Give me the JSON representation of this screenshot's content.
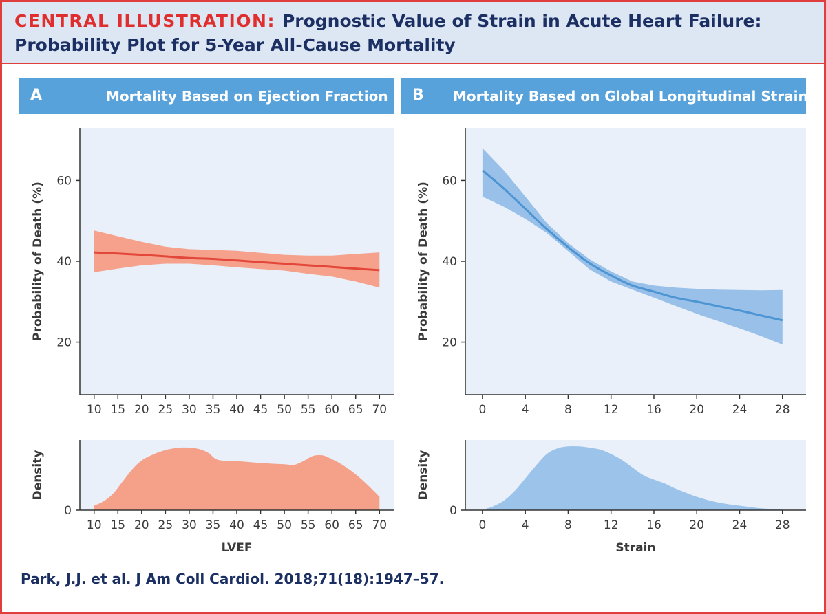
{
  "header": {
    "label": "CENTRAL ILLUSTRATION:",
    "title_line1": "Prognostic Value of Strain in Acute Heart Failure:",
    "title_line2": "Probability Plot for 5-Year All-Cause Mortality"
  },
  "panels": {
    "a": {
      "letter": "A",
      "title": "Mortality Based on Ejection Fraction"
    },
    "b": {
      "letter": "B",
      "title": "Mortality Based on Global Longitudinal Strain"
    }
  },
  "citation": "Park, J.J. et al. J Am Coll Cardiol. 2018;71(18):1947–57.",
  "colors": {
    "red_line": "#e2473a",
    "red_band": "#f6a18c",
    "red_density": "#f5a088",
    "blue_line": "#4d94d3",
    "blue_band": "#98c0e8",
    "blue_density": "#9cc3ea",
    "plot_bg": "#e9f0f9",
    "axis": "#333333"
  },
  "chart_data": [
    {
      "id": "a-prob",
      "type": "line",
      "title": "Mortality Based on Ejection Fraction",
      "xlabel": "",
      "ylabel": "Probability of Death (%)",
      "xlim": [
        7,
        73
      ],
      "ylim": [
        7,
        73
      ],
      "xticks": [
        10,
        15,
        20,
        25,
        30,
        35,
        40,
        45,
        50,
        55,
        60,
        65,
        70
      ],
      "yticks": [
        20,
        40,
        60
      ],
      "line_color": "red_line",
      "band_color": "red_band",
      "series": [
        {
          "name": "Probability of death",
          "x": [
            10,
            15,
            20,
            25,
            30,
            35,
            40,
            45,
            50,
            55,
            60,
            65,
            70
          ],
          "y": [
            42.2,
            41.9,
            41.6,
            41.2,
            40.8,
            40.6,
            40.2,
            39.8,
            39.4,
            39.0,
            38.6,
            38.2,
            37.8
          ],
          "lower": [
            37.3,
            38.2,
            39.0,
            39.4,
            39.4,
            39.0,
            38.5,
            38.1,
            37.7,
            36.9,
            36.2,
            35.0,
            33.5
          ],
          "upper": [
            47.6,
            46.2,
            44.8,
            43.6,
            43.0,
            42.8,
            42.6,
            42.1,
            41.6,
            41.4,
            41.4,
            41.8,
            42.2
          ]
        }
      ]
    },
    {
      "id": "a-density",
      "type": "area",
      "xlabel": "LVEF",
      "ylabel": "Density",
      "xlim": [
        7,
        73
      ],
      "ylim": [
        0,
        1.1
      ],
      "xticks": [
        10,
        15,
        20,
        25,
        30,
        35,
        40,
        45,
        50,
        55,
        60,
        65,
        70
      ],
      "yticks": [
        0
      ],
      "fill_color": "red_density",
      "series": [
        {
          "name": "Density",
          "x": [
            10,
            12,
            14,
            16,
            18,
            20,
            22,
            24,
            26,
            28,
            30,
            32,
            34,
            36,
            40,
            45,
            50,
            52,
            54,
            56,
            58,
            60,
            62,
            64,
            66,
            68,
            70
          ],
          "y": [
            0.07,
            0.14,
            0.26,
            0.45,
            0.64,
            0.78,
            0.86,
            0.92,
            0.96,
            0.98,
            0.98,
            0.96,
            0.9,
            0.79,
            0.77,
            0.74,
            0.72,
            0.71,
            0.77,
            0.85,
            0.86,
            0.8,
            0.72,
            0.62,
            0.5,
            0.36,
            0.21
          ]
        }
      ]
    },
    {
      "id": "b-prob",
      "type": "line",
      "title": "Mortality Based on Global Longitudinal Strain",
      "xlabel": "",
      "ylabel": "Probability of Death (%)",
      "xlim": [
        -1.6,
        30.2
      ],
      "ylim": [
        7,
        73
      ],
      "xticks": [
        0,
        4,
        8,
        12,
        16,
        20,
        24,
        28
      ],
      "yticks": [
        20,
        40,
        60
      ],
      "line_color": "blue_line",
      "band_color": "blue_band",
      "series": [
        {
          "name": "Probability of death",
          "x": [
            0,
            2,
            4,
            6,
            8,
            10,
            12,
            14,
            16,
            18,
            20,
            22,
            24,
            26,
            28
          ],
          "y": [
            62.5,
            58.0,
            53.0,
            48.0,
            43.5,
            39.5,
            36.5,
            34.0,
            32.5,
            31.0,
            30.0,
            28.9,
            27.8,
            26.6,
            25.4
          ],
          "lower": [
            56.0,
            53.5,
            50.5,
            47.0,
            42.5,
            38.0,
            35.0,
            33.0,
            31.0,
            29.0,
            27.0,
            25.2,
            23.4,
            21.5,
            19.4
          ],
          "upper": [
            68.0,
            62.5,
            56.0,
            49.5,
            44.5,
            40.5,
            37.5,
            35.0,
            34.0,
            33.5,
            33.2,
            33.0,
            32.9,
            32.8,
            32.9
          ]
        }
      ]
    },
    {
      "id": "b-density",
      "type": "area",
      "xlabel": "Strain",
      "ylabel": "Density",
      "xlim": [
        -1.6,
        30.2
      ],
      "ylim": [
        0,
        1.1
      ],
      "xticks": [
        0,
        4,
        8,
        12,
        16,
        20,
        24,
        28
      ],
      "yticks": [
        0
      ],
      "fill_color": "blue_density",
      "series": [
        {
          "name": "Density",
          "x": [
            0.3,
            1,
            2,
            3,
            4,
            5,
            6,
            7,
            8,
            9,
            10,
            11,
            12,
            13,
            14,
            15,
            16,
            17,
            18,
            20,
            22,
            24,
            26,
            28
          ],
          "y": [
            0.02,
            0.06,
            0.15,
            0.3,
            0.5,
            0.7,
            0.88,
            0.97,
            1.0,
            1.0,
            0.98,
            0.95,
            0.88,
            0.79,
            0.67,
            0.55,
            0.48,
            0.42,
            0.34,
            0.21,
            0.12,
            0.07,
            0.03,
            0.01
          ]
        }
      ]
    }
  ]
}
